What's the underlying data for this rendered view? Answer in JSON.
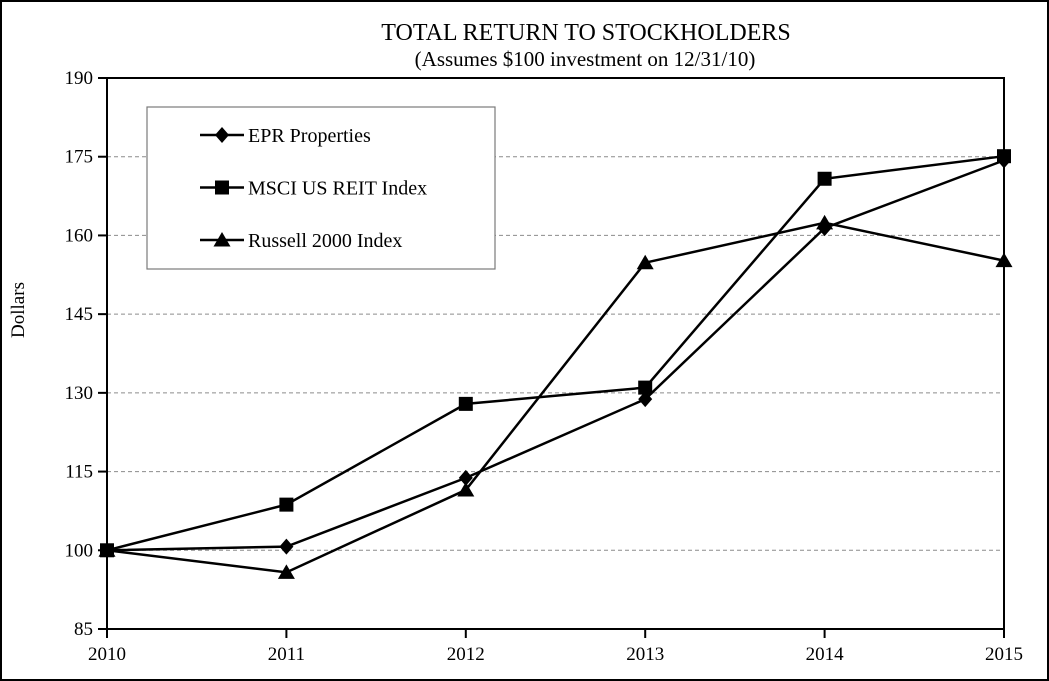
{
  "chart_data": {
    "type": "line",
    "title": "TOTAL RETURN TO STOCKHOLDERS",
    "subtitle": "(Assumes $100 investment on 12/31/10)",
    "ylabel": "Dollars",
    "xlabel": "",
    "categories": [
      "2010",
      "2011",
      "2012",
      "2013",
      "2014",
      "2015"
    ],
    "series": [
      {
        "name": "EPR Properties",
        "marker": "diamond",
        "values": [
          100,
          100.7,
          113.8,
          128.8,
          161.4,
          174.3
        ]
      },
      {
        "name": "MSCI US REIT Index",
        "marker": "square",
        "values": [
          100,
          108.7,
          127.9,
          131.0,
          170.8,
          175.1
        ]
      },
      {
        "name": "Russell 2000 Index",
        "marker": "triangle",
        "values": [
          100,
          95.8,
          111.5,
          154.8,
          162.4,
          155.2
        ]
      }
    ],
    "ylim": [
      85,
      190
    ],
    "yticks": [
      85,
      100,
      115,
      130,
      145,
      160,
      175,
      190
    ],
    "grid": "horizontal-dashed",
    "legend_position": "inside-top-left",
    "colors": {
      "series": "#000000",
      "grid": "#8c8c8c",
      "frame": "#000000",
      "legend_border": "#7a7a7a",
      "background": "#ffffff"
    }
  }
}
